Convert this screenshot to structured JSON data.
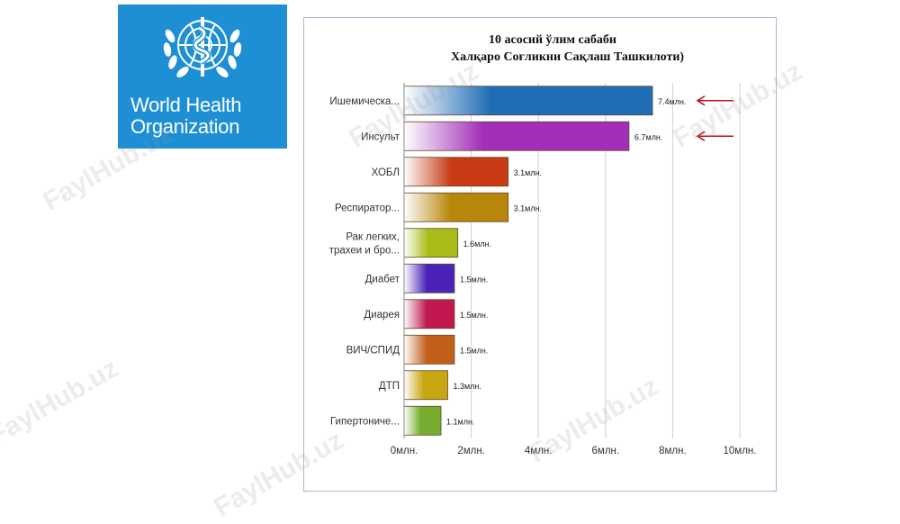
{
  "logo": {
    "line1": "World Health",
    "line2": "Organization",
    "color": "#1e8fd5"
  },
  "chart_data": {
    "type": "bar",
    "orientation": "horizontal",
    "title": "10 асосий ўлим сабаби",
    "subtitle": "Халқаро Соғликни Сақлаш Ташкилоти)",
    "categories": [
      [
        "Ишемическа..."
      ],
      [
        "Инсульт"
      ],
      [
        "ХОБЛ"
      ],
      [
        "Респиратор..."
      ],
      [
        "Рак легких,",
        "трахеи и бро..."
      ],
      [
        "Диабет"
      ],
      [
        "Диарея"
      ],
      [
        "ВИЧ/СПИД"
      ],
      [
        "ДТП"
      ],
      [
        "Гипертониче..."
      ]
    ],
    "values": [
      7.4,
      6.7,
      3.1,
      3.1,
      1.6,
      1.5,
      1.5,
      1.5,
      1.3,
      1.1
    ],
    "data_labels": [
      "7.4млн.",
      "6.7млн.",
      "3.1млн.",
      "3.1млн.",
      "1.6млн.",
      "1.5млн.",
      "1.5млн.",
      "1.5млн.",
      "1.3млн.",
      "1.1млн."
    ],
    "colors": [
      "#1f6db5",
      "#a12fb8",
      "#c73a14",
      "#b8860b",
      "#a8bb18",
      "#4a22b8",
      "#c0184f",
      "#c2601a",
      "#c7a612",
      "#76ad2e"
    ],
    "xlim": [
      0,
      10
    ],
    "xticks": [
      0,
      2,
      4,
      6,
      8,
      10
    ],
    "xtick_labels": [
      "0млн.",
      "2млн.",
      "4млн.",
      "6млн.",
      "8млн.",
      "10млн."
    ],
    "grid": true,
    "annotations": [
      "arrow",
      "arrow"
    ],
    "annotation_color": "#c0101a"
  },
  "watermark": "FaylHub.uz"
}
